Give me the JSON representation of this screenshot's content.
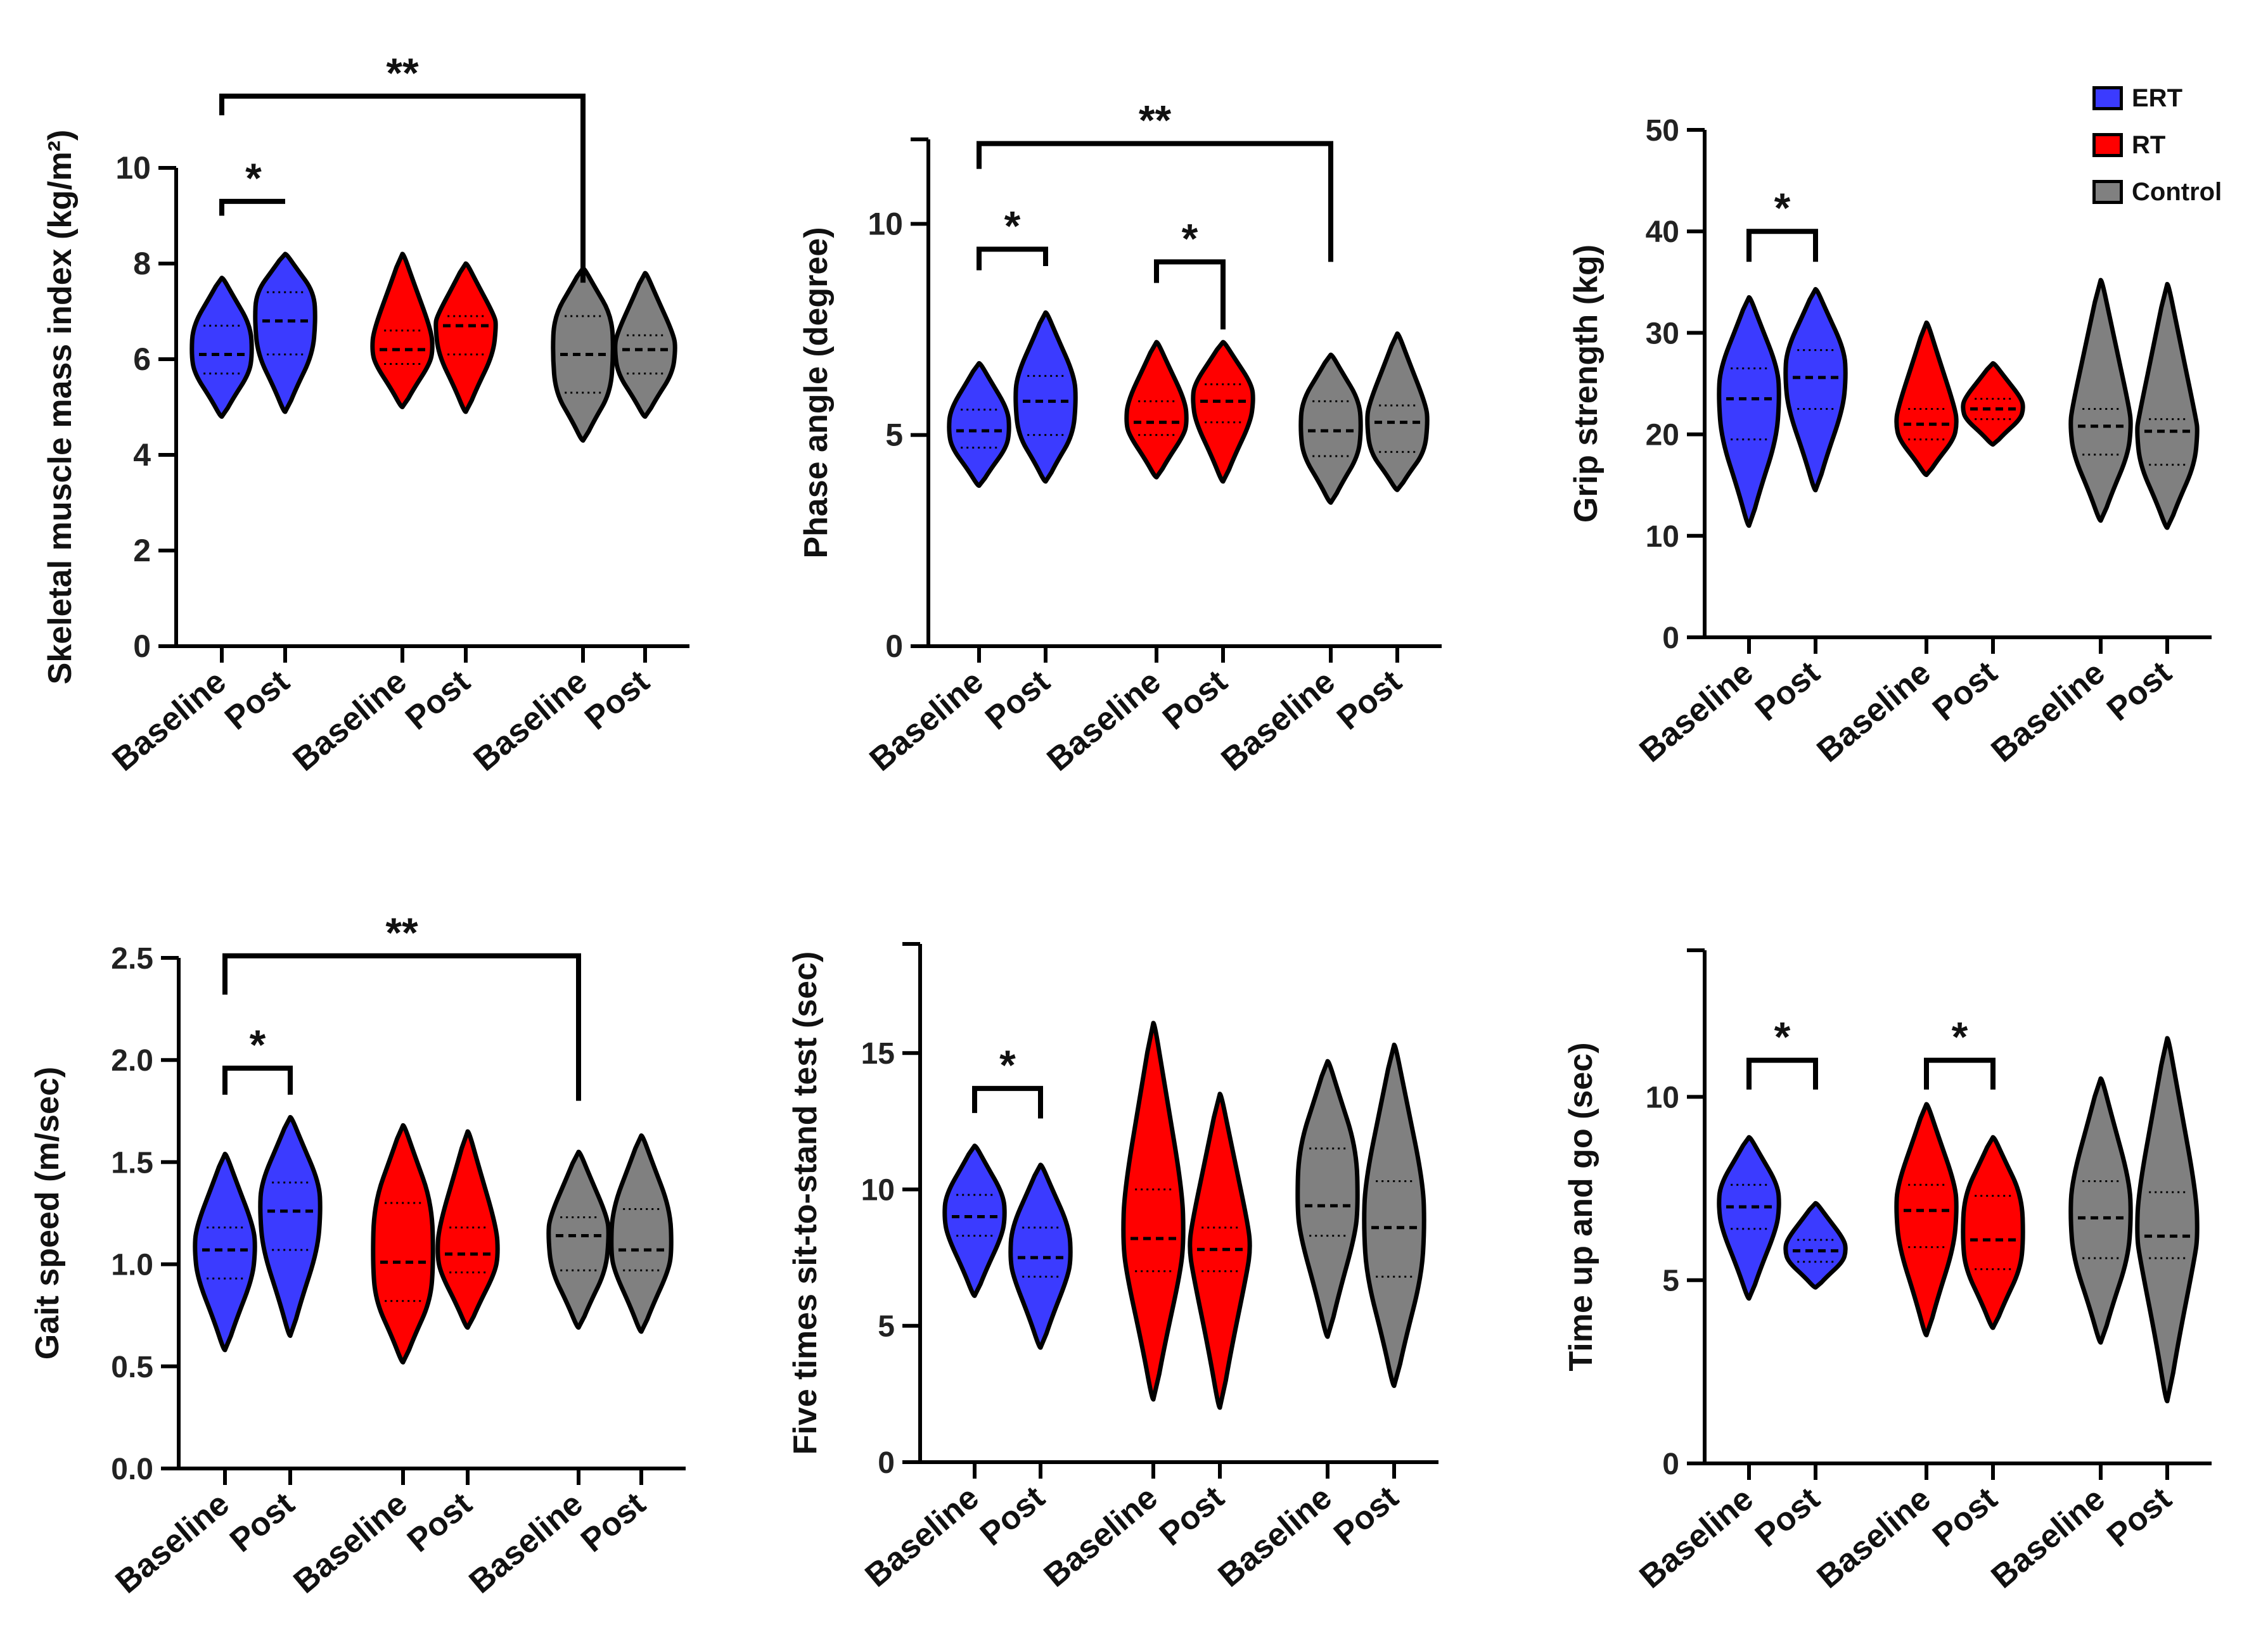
{
  "figure": {
    "legend": [
      {
        "label": "ERT",
        "color": "#3b3bff"
      },
      {
        "label": "RT",
        "color": "#ff0000"
      },
      {
        "label": "Control",
        "color": "#808080"
      }
    ]
  },
  "chart_data": [
    {
      "type": "violin",
      "id": "smmi",
      "ylabel": "Skeletal muscle mass index (kg/m²)",
      "ylim": [
        0,
        10
      ],
      "yticks": [
        0,
        2,
        4,
        6,
        8,
        10
      ],
      "ytick_labels": [
        "0",
        "2",
        "4",
        "6",
        "8",
        "10"
      ],
      "ymax": 10,
      "categories": [
        "Baseline",
        "Post",
        "Baseline",
        "Post",
        "Baseline",
        "Post"
      ],
      "series": [
        {
          "name": "ERT",
          "stage": "Baseline",
          "min": 4.8,
          "max": 7.7,
          "median": 6.1,
          "q1": 5.7,
          "q3": 6.7
        },
        {
          "name": "ERT",
          "stage": "Post",
          "min": 4.9,
          "max": 8.2,
          "median": 6.8,
          "q1": 6.1,
          "q3": 7.4
        },
        {
          "name": "RT",
          "stage": "Baseline",
          "min": 5.0,
          "max": 8.2,
          "median": 6.2,
          "q1": 5.9,
          "q3": 6.6
        },
        {
          "name": "RT",
          "stage": "Post",
          "min": 4.9,
          "max": 8.0,
          "median": 6.7,
          "q1": 6.1,
          "q3": 6.9
        },
        {
          "name": "Control",
          "stage": "Baseline",
          "min": 4.3,
          "max": 7.9,
          "median": 6.1,
          "q1": 5.3,
          "q3": 6.9
        },
        {
          "name": "Control",
          "stage": "Post",
          "min": 4.8,
          "max": 7.8,
          "median": 6.2,
          "q1": 5.7,
          "q3": 6.5
        }
      ],
      "annotations": [
        {
          "label": "*",
          "from": 0,
          "to": 1,
          "y": 9.3,
          "drop_left": 9.0,
          "drop_right": 9.3
        },
        {
          "label": "**",
          "from": 0,
          "to": 4,
          "y": 11.5,
          "drop_left": 11.1,
          "drop_right": 7.6
        }
      ]
    },
    {
      "type": "violin",
      "id": "phase",
      "ylabel": "Phase angle (degree)",
      "ylim": [
        0,
        12
      ],
      "yticks": [
        0,
        5,
        10
      ],
      "ytick_labels": [
        "0",
        "5",
        "10"
      ],
      "ymax": 12,
      "categories": [
        "Baseline",
        "Post",
        "Baseline",
        "Post",
        "Baseline",
        "Post"
      ],
      "series": [
        {
          "name": "ERT",
          "stage": "Baseline",
          "min": 3.8,
          "max": 6.7,
          "median": 5.1,
          "q1": 4.7,
          "q3": 5.6
        },
        {
          "name": "ERT",
          "stage": "Post",
          "min": 3.9,
          "max": 7.9,
          "median": 5.8,
          "q1": 5.0,
          "q3": 6.4
        },
        {
          "name": "RT",
          "stage": "Baseline",
          "min": 4.0,
          "max": 7.2,
          "median": 5.3,
          "q1": 5.0,
          "q3": 5.8
        },
        {
          "name": "RT",
          "stage": "Post",
          "min": 3.9,
          "max": 7.2,
          "median": 5.8,
          "q1": 5.3,
          "q3": 6.2
        },
        {
          "name": "Control",
          "stage": "Baseline",
          "min": 3.4,
          "max": 6.9,
          "median": 5.1,
          "q1": 4.5,
          "q3": 5.8
        },
        {
          "name": "Control",
          "stage": "Post",
          "min": 3.7,
          "max": 7.4,
          "median": 5.3,
          "q1": 4.6,
          "q3": 5.7
        }
      ],
      "annotations": [
        {
          "label": "*",
          "from": 0,
          "to": 1,
          "y": 9.4,
          "drop_left": 8.9,
          "drop_right": 9.0
        },
        {
          "label": "*",
          "from": 2,
          "to": 3,
          "y": 9.1,
          "drop_left": 8.6,
          "drop_right": 7.5
        },
        {
          "label": "**",
          "from": 0,
          "to": 4,
          "y": 11.9,
          "drop_left": 11.3,
          "drop_right": 9.1
        }
      ]
    },
    {
      "type": "violin",
      "id": "grip",
      "ylabel": "Grip strength (kg)",
      "ylim": [
        0,
        50
      ],
      "yticks": [
        0,
        10,
        20,
        30,
        40,
        50
      ],
      "ytick_labels": [
        "0",
        "10",
        "20",
        "30",
        "40",
        "50"
      ],
      "ymax": 50,
      "categories": [
        "Baseline",
        "Post",
        "Baseline",
        "Post",
        "Baseline",
        "Post"
      ],
      "series": [
        {
          "name": "ERT",
          "stage": "Baseline",
          "min": 11,
          "max": 33.5,
          "median": 23.5,
          "q1": 19.5,
          "q3": 26.5
        },
        {
          "name": "ERT",
          "stage": "Post",
          "min": 14.5,
          "max": 34.3,
          "median": 25.6,
          "q1": 22.5,
          "q3": 28.3
        },
        {
          "name": "RT",
          "stage": "Baseline",
          "min": 16,
          "max": 31,
          "median": 21.0,
          "q1": 19.5,
          "q3": 22.5
        },
        {
          "name": "RT",
          "stage": "Post",
          "min": 19,
          "max": 27,
          "median": 22.5,
          "q1": 21.5,
          "q3": 23.5
        },
        {
          "name": "Control",
          "stage": "Baseline",
          "min": 11.5,
          "max": 35.2,
          "median": 20.8,
          "q1": 18.0,
          "q3": 22.5
        },
        {
          "name": "Control",
          "stage": "Post",
          "min": 10.8,
          "max": 34.8,
          "median": 20.3,
          "q1": 17.0,
          "q3": 21.5
        }
      ],
      "annotations": [
        {
          "label": "*",
          "from": 0,
          "to": 1,
          "y": 40.0,
          "drop_left": 37.0,
          "drop_right": 37.0
        }
      ]
    },
    {
      "type": "violin",
      "id": "gait",
      "ylabel": "Gait speed (m/sec)",
      "ylim": [
        0,
        2.5
      ],
      "yticks": [
        0,
        0.5,
        1.0,
        1.5,
        2.0,
        2.5
      ],
      "ytick_labels": [
        "0.0",
        "0.5",
        "1.0",
        "1.5",
        "2.0",
        "2.5"
      ],
      "ymax": 2.5,
      "categories": [
        "Baseline",
        "Post",
        "Baseline",
        "Post",
        "Baseline",
        "Post"
      ],
      "series": [
        {
          "name": "ERT",
          "stage": "Baseline",
          "min": 0.58,
          "max": 1.54,
          "median": 1.07,
          "q1": 0.93,
          "q3": 1.18
        },
        {
          "name": "ERT",
          "stage": "Post",
          "min": 0.65,
          "max": 1.72,
          "median": 1.26,
          "q1": 1.07,
          "q3": 1.4
        },
        {
          "name": "RT",
          "stage": "Baseline",
          "min": 0.52,
          "max": 1.68,
          "median": 1.01,
          "q1": 0.82,
          "q3": 1.3
        },
        {
          "name": "RT",
          "stage": "Post",
          "min": 0.69,
          "max": 1.65,
          "median": 1.05,
          "q1": 0.96,
          "q3": 1.18
        },
        {
          "name": "Control",
          "stage": "Baseline",
          "min": 0.69,
          "max": 1.55,
          "median": 1.14,
          "q1": 0.97,
          "q3": 1.23
        },
        {
          "name": "Control",
          "stage": "Post",
          "min": 0.67,
          "max": 1.63,
          "median": 1.07,
          "q1": 0.97,
          "q3": 1.27
        }
      ],
      "annotations": [
        {
          "label": "*",
          "from": 0,
          "to": 1,
          "y": 1.96,
          "drop_left": 1.83,
          "drop_right": 1.83
        },
        {
          "label": "**",
          "from": 0,
          "to": 4,
          "y": 2.51,
          "drop_left": 2.32,
          "drop_right": 1.8
        }
      ]
    },
    {
      "type": "violin",
      "id": "sts",
      "ylabel": "Five times sit-to-stand test  (sec)",
      "ylim": [
        0,
        19
      ],
      "yticks": [
        0,
        5,
        10,
        15
      ],
      "ytick_labels": [
        "0",
        "5",
        "10",
        "15"
      ],
      "ymax": 19,
      "categories": [
        "Baseline",
        "Post",
        "Baseline",
        "Post",
        "Baseline",
        "Post"
      ],
      "series": [
        {
          "name": "ERT",
          "stage": "Baseline",
          "min": 6.1,
          "max": 11.6,
          "median": 9.0,
          "q1": 8.3,
          "q3": 9.8
        },
        {
          "name": "ERT",
          "stage": "Post",
          "min": 4.2,
          "max": 10.9,
          "median": 7.5,
          "q1": 6.8,
          "q3": 8.6
        },
        {
          "name": "RT",
          "stage": "Baseline",
          "min": 2.3,
          "max": 16.1,
          "median": 8.2,
          "q1": 7.0,
          "q3": 10.0
        },
        {
          "name": "RT",
          "stage": "Post",
          "min": 2.0,
          "max": 13.5,
          "median": 7.8,
          "q1": 7.0,
          "q3": 8.6
        },
        {
          "name": "Control",
          "stage": "Baseline",
          "min": 4.6,
          "max": 14.7,
          "median": 9.4,
          "q1": 8.3,
          "q3": 11.5
        },
        {
          "name": "Control",
          "stage": "Post",
          "min": 2.8,
          "max": 15.3,
          "median": 8.6,
          "q1": 6.8,
          "q3": 10.3
        }
      ],
      "annotations": [
        {
          "label": "*",
          "from": 0,
          "to": 1,
          "y": 13.7,
          "drop_left": 12.8,
          "drop_right": 12.6
        }
      ]
    },
    {
      "type": "violin",
      "id": "tug",
      "ylabel": "Time up and go (sec)",
      "ylim": [
        0,
        14
      ],
      "yticks": [
        0,
        5,
        10
      ],
      "ytick_labels": [
        "0",
        "5",
        "10"
      ],
      "ymax": 14,
      "categories": [
        "Baseline",
        "Post",
        "Baseline",
        "Post",
        "Baseline",
        "Post"
      ],
      "series": [
        {
          "name": "ERT",
          "stage": "Baseline",
          "min": 4.5,
          "max": 8.9,
          "median": 7.0,
          "q1": 6.4,
          "q3": 7.6
        },
        {
          "name": "ERT",
          "stage": "Post",
          "min": 4.8,
          "max": 7.1,
          "median": 5.8,
          "q1": 5.5,
          "q3": 6.1
        },
        {
          "name": "RT",
          "stage": "Baseline",
          "min": 3.5,
          "max": 9.8,
          "median": 6.9,
          "q1": 5.9,
          "q3": 7.6
        },
        {
          "name": "RT",
          "stage": "Post",
          "min": 3.7,
          "max": 8.9,
          "median": 6.1,
          "q1": 5.3,
          "q3": 7.3
        },
        {
          "name": "Control",
          "stage": "Baseline",
          "min": 3.3,
          "max": 10.5,
          "median": 6.7,
          "q1": 5.6,
          "q3": 7.7
        },
        {
          "name": "Control",
          "stage": "Post",
          "min": 1.7,
          "max": 11.6,
          "median": 6.2,
          "q1": 5.6,
          "q3": 7.4
        }
      ],
      "annotations": [
        {
          "label": "*",
          "from": 0,
          "to": 1,
          "y": 11.0,
          "drop_left": 10.2,
          "drop_right": 10.2
        },
        {
          "label": "*",
          "from": 2,
          "to": 3,
          "y": 11.0,
          "drop_left": 10.2,
          "drop_right": 10.2
        }
      ]
    }
  ]
}
